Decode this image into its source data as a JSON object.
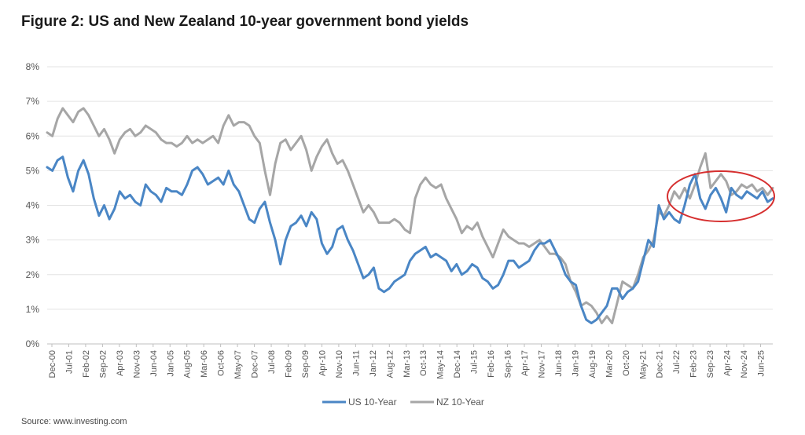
{
  "title": "Figure 2: US and New Zealand 10-year government bond yields",
  "source": "Source: www.investing.com",
  "chart_data": {
    "type": "line",
    "title": "Figure 2: US and New Zealand 10-year government bond yields",
    "ylim": [
      0,
      8
    ],
    "yticks": [
      "0%",
      "1%",
      "2%",
      "3%",
      "4%",
      "5%",
      "6%",
      "7%",
      "8%"
    ],
    "xticks": [
      "Dec-00",
      "Jul-01",
      "Feb-02",
      "Sep-02",
      "Apr-03",
      "Nov-03",
      "Jun-04",
      "Jan-05",
      "Aug-05",
      "Mar-06",
      "Oct-06",
      "May-07",
      "Dec-07",
      "Jul-08",
      "Feb-09",
      "Sep-09",
      "Apr-10",
      "Nov-10",
      "Jun-11",
      "Jan-12",
      "Aug-12",
      "Mar-13",
      "Oct-13",
      "May-14",
      "Dec-14",
      "Jul-15",
      "Feb-16",
      "Sep-16",
      "Apr-17",
      "Nov-17",
      "Jun-18",
      "Jan-19",
      "Aug-19",
      "Mar-20",
      "Oct-20",
      "May-21",
      "Dec-21",
      "Jul-22",
      "Feb-23",
      "Sep-23",
      "Apr-24",
      "Nov-24",
      "Jun-25"
    ],
    "grid": "horizontal",
    "legend": "bottom-center",
    "annotation": "red ellipse highlighting 2022-2025 convergence",
    "series": [
      {
        "name": "US 10-Year",
        "color": "#4a86c5",
        "values": [
          5.1,
          5.0,
          5.3,
          5.4,
          4.8,
          4.4,
          5.0,
          5.3,
          4.9,
          4.2,
          3.7,
          4.0,
          3.6,
          3.9,
          4.4,
          4.2,
          4.3,
          4.1,
          4.0,
          4.6,
          4.4,
          4.3,
          4.1,
          4.5,
          4.4,
          4.4,
          4.3,
          4.6,
          5.0,
          5.1,
          4.9,
          4.6,
          4.7,
          4.8,
          4.6,
          5.0,
          4.6,
          4.4,
          4.0,
          3.6,
          3.5,
          3.9,
          4.1,
          3.5,
          3.0,
          2.3,
          3.0,
          3.4,
          3.5,
          3.7,
          3.4,
          3.8,
          3.6,
          2.9,
          2.6,
          2.8,
          3.3,
          3.4,
          3.0,
          2.7,
          2.3,
          1.9,
          2.0,
          2.2,
          1.6,
          1.5,
          1.6,
          1.8,
          1.9,
          2.0,
          2.4,
          2.6,
          2.7,
          2.8,
          2.5,
          2.6,
          2.5,
          2.4,
          2.1,
          2.3,
          2.0,
          2.1,
          2.3,
          2.2,
          1.9,
          1.8,
          1.6,
          1.7,
          2.0,
          2.4,
          2.4,
          2.2,
          2.3,
          2.4,
          2.7,
          2.9,
          2.9,
          3.0,
          2.7,
          2.4,
          2.0,
          1.8,
          1.7,
          1.1,
          0.7,
          0.6,
          0.7,
          0.9,
          1.1,
          1.6,
          1.6,
          1.3,
          1.5,
          1.6,
          1.8,
          2.4,
          3.0,
          2.8,
          4.0,
          3.6,
          3.8,
          3.6,
          3.5,
          4.0,
          4.6,
          4.9,
          4.2,
          3.9,
          4.3,
          4.5,
          4.2,
          3.8,
          4.5,
          4.3,
          4.2,
          4.4,
          4.3,
          4.2,
          4.4,
          4.1,
          4.2
        ]
      },
      {
        "name": "NZ 10-Year",
        "color": "#a6a6a6",
        "values": [
          6.1,
          6.0,
          6.5,
          6.8,
          6.6,
          6.4,
          6.7,
          6.8,
          6.6,
          6.3,
          6.0,
          6.2,
          5.9,
          5.5,
          5.9,
          6.1,
          6.2,
          6.0,
          6.1,
          6.3,
          6.2,
          6.1,
          5.9,
          5.8,
          5.8,
          5.7,
          5.8,
          6.0,
          5.8,
          5.9,
          5.8,
          5.9,
          6.0,
          5.8,
          6.3,
          6.6,
          6.3,
          6.4,
          6.4,
          6.3,
          6.0,
          5.8,
          5.0,
          4.3,
          5.2,
          5.8,
          5.9,
          5.6,
          5.8,
          6.0,
          5.6,
          5.0,
          5.4,
          5.7,
          5.9,
          5.5,
          5.2,
          5.3,
          5.0,
          4.6,
          4.2,
          3.8,
          4.0,
          3.8,
          3.5,
          3.5,
          3.5,
          3.6,
          3.5,
          3.3,
          3.2,
          4.2,
          4.6,
          4.8,
          4.6,
          4.5,
          4.6,
          4.2,
          3.9,
          3.6,
          3.2,
          3.4,
          3.3,
          3.5,
          3.1,
          2.8,
          2.5,
          2.9,
          3.3,
          3.1,
          3.0,
          2.9,
          2.9,
          2.8,
          2.9,
          3.0,
          2.8,
          2.6,
          2.6,
          2.5,
          2.3,
          1.8,
          1.5,
          1.1,
          1.2,
          1.1,
          0.9,
          0.6,
          0.8,
          0.6,
          1.2,
          1.8,
          1.7,
          1.6,
          2.0,
          2.5,
          2.7,
          3.0,
          3.8,
          3.7,
          4.0,
          4.4,
          4.2,
          4.5,
          4.2,
          4.6,
          5.1,
          5.5,
          4.5,
          4.7,
          4.9,
          4.7,
          4.3,
          4.4,
          4.6,
          4.5,
          4.6,
          4.4,
          4.5,
          4.3,
          4.5
        ]
      }
    ]
  }
}
